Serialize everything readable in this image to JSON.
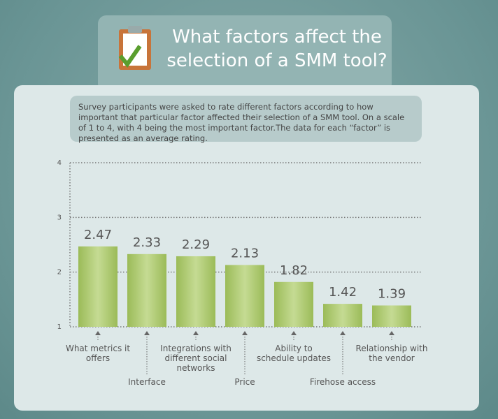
{
  "chart_data": {
    "type": "bar",
    "title": "What factors affect the selection of a SMM tool?",
    "subtitle": "Survey participants were asked to rate different factors according to how important that particular factor affected their selection of a SMM tool. On a scale of 1 to 4, with 4 being the most important factor.The data for each “factor” is presented as an average rating.",
    "categories": [
      "What metrics it offers",
      "Interface",
      "Integrations with different social networks",
      "Price",
      "Ability to schedule updates",
      "Firehose access",
      "Relationship with the vendor"
    ],
    "values": [
      2.47,
      2.33,
      2.29,
      2.13,
      1.82,
      1.42,
      1.39
    ],
    "color": "#a3c163",
    "ylim": [
      1,
      4
    ],
    "yticks": [
      1,
      2,
      3,
      4
    ],
    "grid": true
  }
}
